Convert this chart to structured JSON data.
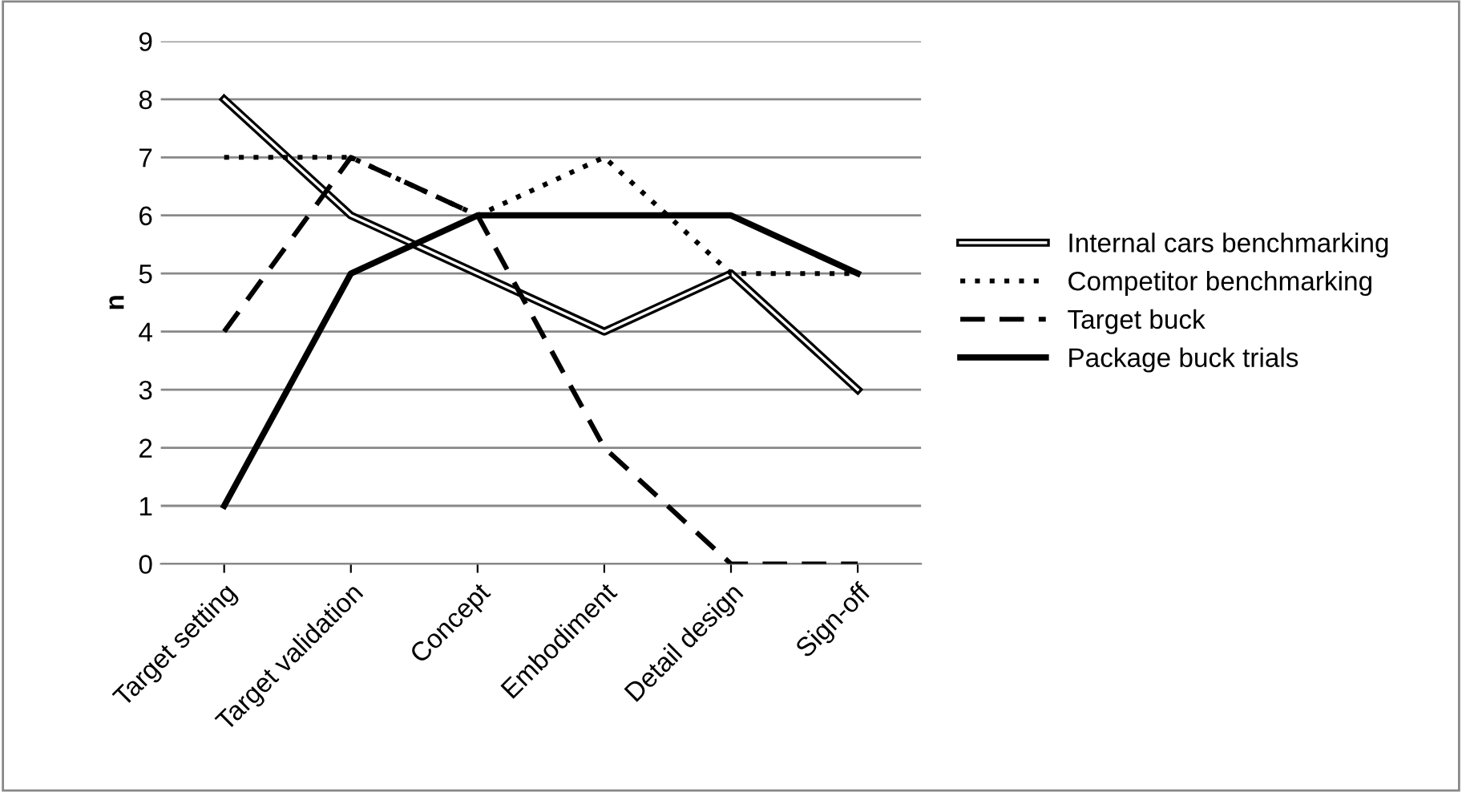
{
  "chart_data": {
    "type": "line",
    "ylabel": "n",
    "categories": [
      "Target setting",
      "Target validation",
      "Concept",
      "Embodiment",
      "Detail design",
      "Sign-off"
    ],
    "series": [
      {
        "name": "Internal cars benchmarking",
        "color": "#000000",
        "line_style": "solid",
        "values": [
          8,
          6,
          5,
          4,
          5,
          3
        ]
      },
      {
        "name": "Competitor benchmarking",
        "color": "#000000",
        "line_style": "dotted",
        "values": [
          7,
          7,
          6,
          7,
          5,
          5
        ]
      },
      {
        "name": "Target buck",
        "color": "#000000",
        "line_style": "dashed",
        "values": [
          4,
          7,
          6,
          2,
          0,
          0
        ]
      },
      {
        "name": "Package buck trials",
        "color": "#000000",
        "line_style": "solid",
        "values": [
          1,
          5,
          6,
          6,
          6,
          5
        ]
      }
    ],
    "ylim": [
      0,
      9
    ],
    "yticks": [
      0,
      1,
      2,
      3,
      4,
      5,
      6,
      7,
      8,
      9
    ],
    "grid": "y",
    "legend": "right",
    "marker": "none"
  }
}
